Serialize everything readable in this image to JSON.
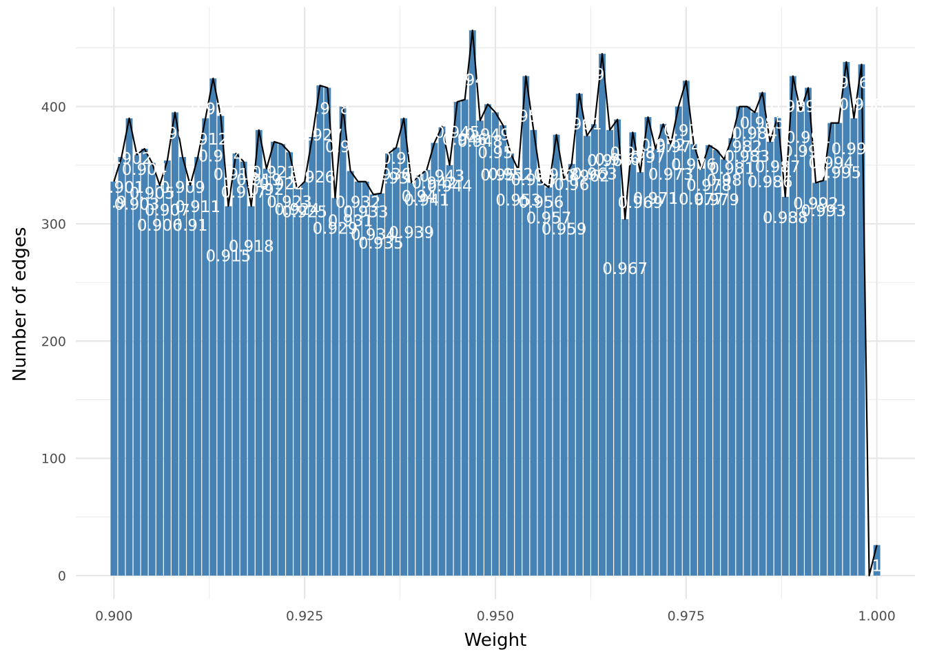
{
  "chart_data": {
    "type": "bar",
    "xlabel": "Weight",
    "ylabel": "Number of edges",
    "xlim": [
      0.895,
      1.005
    ],
    "ylim": [
      -20,
      485
    ],
    "x_ticks": [
      {
        "value": 0.9,
        "label": "0.900"
      },
      {
        "value": 0.925,
        "label": "0.925"
      },
      {
        "value": 0.95,
        "label": "0.950"
      },
      {
        "value": 0.975,
        "label": "0.975"
      },
      {
        "value": 1.0,
        "label": "1.000"
      }
    ],
    "y_ticks": [
      {
        "value": 0,
        "label": "0"
      },
      {
        "value": 100,
        "label": "100"
      },
      {
        "value": 200,
        "label": "200"
      },
      {
        "value": 300,
        "label": "300"
      },
      {
        "value": 400,
        "label": "400"
      }
    ],
    "bin_width": 0.001,
    "grid": true,
    "bar_color": "#4682B4",
    "line_color": "#000000",
    "label_color": "#FFFFFF",
    "overlay": "frequency polygon through bar tops",
    "bar_labels": "each bar labelled with its weight, white text",
    "x": [
      0.9,
      0.901,
      0.902,
      0.903,
      0.904,
      0.905,
      0.906,
      0.907,
      0.908,
      0.909,
      0.91,
      0.911,
      0.912,
      0.913,
      0.914,
      0.915,
      0.916,
      0.917,
      0.918,
      0.919,
      0.92,
      0.921,
      0.922,
      0.923,
      0.924,
      0.925,
      0.926,
      0.927,
      0.928,
      0.929,
      0.93,
      0.931,
      0.932,
      0.933,
      0.934,
      0.935,
      0.936,
      0.937,
      0.938,
      0.939,
      0.94,
      0.941,
      0.942,
      0.943,
      0.944,
      0.945,
      0.946,
      0.947,
      0.948,
      0.949,
      0.95,
      0.951,
      0.952,
      0.953,
      0.954,
      0.955,
      0.956,
      0.957,
      0.958,
      0.959,
      0.96,
      0.961,
      0.962,
      0.963,
      0.964,
      0.965,
      0.966,
      0.967,
      0.968,
      0.969,
      0.97,
      0.971,
      0.972,
      0.973,
      0.974,
      0.975,
      0.976,
      0.977,
      0.978,
      0.979,
      0.98,
      0.981,
      0.982,
      0.983,
      0.984,
      0.985,
      0.986,
      0.987,
      0.988,
      0.989,
      0.99,
      0.991,
      0.992,
      0.993,
      0.994,
      0.995,
      0.996,
      0.997,
      0.998,
      0.999,
      1
    ],
    "labels": [
      "0.9",
      "0.901",
      "0.902",
      "0.903",
      "0.904",
      "0.905",
      "0.906",
      "0.907",
      "0.908",
      "0.909",
      "0.91",
      "0.911",
      "0.912",
      "0.913",
      "0.914",
      "0.915",
      "0.916",
      "0.917",
      "0.918",
      "0.919",
      "0.92",
      "0.921",
      "0.922",
      "0.923",
      "0.924",
      "0.925",
      "0.926",
      "0.927",
      "0.928",
      "0.929",
      "0.93",
      "0.931",
      "0.932",
      "0.933",
      "0.934",
      "0.935",
      "0.936",
      "0.937",
      "0.938",
      "0.939",
      "0.94",
      "0.941",
      "0.942",
      "0.943",
      "0.944",
      "0.945",
      "0.946",
      "0.947",
      "0.948",
      "0.949",
      "0.95",
      "0.951",
      "0.952",
      "0.953",
      "0.954",
      "0.955",
      "0.956",
      "0.957",
      "0.958",
      "0.959",
      "0.96",
      "0.961",
      "0.962",
      "0.963",
      "0.964",
      "0.965",
      "0.966",
      "0.967",
      "0.968",
      "0.969",
      "0.97",
      "0.971",
      "0.972",
      "0.973",
      "0.974",
      "0.975",
      "0.976",
      "0.977",
      "0.978",
      "0.979",
      "0.98",
      "0.981",
      "0.982",
      "0.983",
      "0.984",
      "0.985",
      "0.986",
      "0.987",
      "0.988",
      "0.989",
      "0.99",
      "0.991",
      "0.992",
      "0.993",
      "0.994",
      "0.995",
      "0.996",
      "0.997",
      "0.998",
      "0.999",
      "1"
    ],
    "values": [
      336,
      357,
      390,
      359,
      364,
      352,
      333,
      354,
      395,
      357,
      333,
      357,
      390,
      424,
      392,
      315,
      360,
      353,
      315,
      380,
      347,
      370,
      368,
      361,
      330,
      336,
      374,
      418,
      416,
      322,
      400,
      345,
      336,
      336,
      325,
      326,
      360,
      365,
      390,
      335,
      341,
      346,
      369,
      383,
      350,
      404,
      406,
      465,
      388,
      402,
      395,
      384,
      360,
      346,
      426,
      380,
      336,
      331,
      376,
      338,
      351,
      411,
      375,
      385,
      445,
      380,
      389,
      304,
      378,
      344,
      391,
      364,
      385,
      368,
      400,
      422,
      368,
      347,
      367,
      363,
      355,
      373,
      400,
      400,
      395,
      412,
      370,
      391,
      323,
      426,
      396,
      416,
      335,
      337,
      386,
      386,
      438,
      390,
      436,
      0,
      26
    ]
  }
}
